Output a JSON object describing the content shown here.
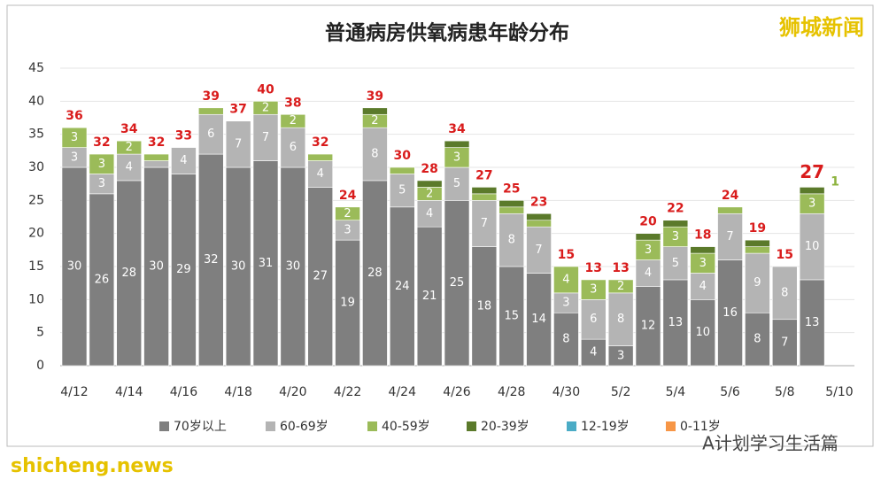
{
  "chart_data": {
    "type": "stacked-bar",
    "title": "普通病房供氧病患年龄分布",
    "categories": [
      "4/12",
      null,
      "4/14",
      null,
      "4/16",
      null,
      "4/18",
      null,
      "4/20",
      null,
      "4/22",
      null,
      "4/24",
      null,
      "4/26",
      null,
      "4/28",
      null,
      "4/30",
      null,
      "5/2",
      null,
      "5/4",
      null,
      "5/6",
      null,
      "5/8",
      null,
      "5/10"
    ],
    "series": [
      {
        "name": "70岁以上",
        "color": "#7f7f7f",
        "values": [
          30,
          26,
          28,
          30,
          29,
          32,
          30,
          31,
          30,
          27,
          19,
          28,
          24,
          21,
          25,
          18,
          15,
          14,
          8,
          4,
          3,
          12,
          13,
          10,
          16,
          8,
          7,
          13,
          null
        ]
      },
      {
        "name": "60-69岁",
        "color": "#b4b4b4",
        "values": [
          3,
          3,
          4,
          1,
          4,
          6,
          7,
          7,
          6,
          4,
          3,
          8,
          5,
          4,
          5,
          7,
          8,
          7,
          3,
          6,
          8,
          4,
          5,
          4,
          7,
          9,
          8,
          10,
          null
        ]
      },
      {
        "name": "40-59岁",
        "color": "#9bbb59",
        "values": [
          3,
          3,
          2,
          1,
          0,
          1,
          0,
          2,
          2,
          1,
          2,
          2,
          1,
          2,
          3,
          1,
          1,
          1,
          4,
          3,
          2,
          3,
          3,
          3,
          1,
          1,
          0,
          3,
          null
        ]
      },
      {
        "name": "20-39岁",
        "color": "#5b7a2b",
        "values": [
          0,
          0,
          0,
          0,
          0,
          0,
          0,
          0,
          0,
          0,
          0,
          1,
          0,
          1,
          1,
          1,
          1,
          1,
          0,
          0,
          0,
          1,
          1,
          1,
          0,
          1,
          0,
          1,
          null
        ]
      },
      {
        "name": "12-19岁",
        "color": "#4bacc6",
        "values": [
          0,
          0,
          0,
          0,
          0,
          0,
          0,
          0,
          0,
          0,
          0,
          0,
          0,
          0,
          0,
          0,
          0,
          0,
          0,
          0,
          0,
          0,
          0,
          0,
          0,
          0,
          0,
          0,
          null
        ]
      },
      {
        "name": "0-11岁",
        "color": "#f79646",
        "values": [
          0,
          0,
          0,
          0,
          0,
          0,
          0,
          0,
          0,
          0,
          0,
          0,
          0,
          0,
          0,
          0,
          0,
          0,
          0,
          0,
          0,
          0,
          0,
          0,
          0,
          0,
          0,
          0,
          null
        ]
      }
    ],
    "totals": [
      36,
      32,
      34,
      32,
      33,
      39,
      37,
      40,
      38,
      32,
      24,
      39,
      30,
      28,
      34,
      27,
      25,
      23,
      15,
      13,
      13,
      20,
      22,
      18,
      24,
      19,
      15,
      27,
      null
    ],
    "ylim": [
      0,
      45
    ],
    "yticks": [
      0,
      5,
      10,
      15,
      20,
      25,
      30,
      35,
      40,
      45
    ],
    "grid": true
  },
  "watermarks": {
    "top_right": "狮城新闻",
    "bottom_left": "shicheng.news",
    "bottom_right": "A计划学习生活篇"
  }
}
